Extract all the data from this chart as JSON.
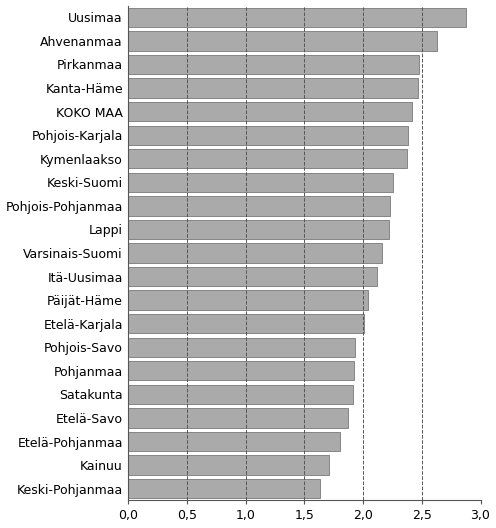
{
  "categories": [
    "Uusimaa",
    "Ahvenanmaa",
    "Pirkanmaa",
    "Kanta-Häme",
    "KOKO MAA",
    "Pohjois-Karjala",
    "Kymenlaakso",
    "Keski-Suomi",
    "Pohjois-Pohjanmaa",
    "Lappi",
    "Varsinais-Suomi",
    "Itä-Uusimaa",
    "Päijät-Häme",
    "Etelä-Karjala",
    "Pohjois-Savo",
    "Pohjanmaa",
    "Satakunta",
    "Etelä-Savo",
    "Etelä-Pohjanmaa",
    "Kainuu",
    "Keski-Pohjanmaa"
  ],
  "values": [
    2.88,
    2.63,
    2.48,
    2.47,
    2.42,
    2.38,
    2.37,
    2.25,
    2.23,
    2.22,
    2.16,
    2.12,
    2.04,
    2.01,
    1.93,
    1.92,
    1.91,
    1.87,
    1.8,
    1.71,
    1.63
  ],
  "bar_color": "#aaaaaa",
  "bar_edgecolor": "#666666",
  "xlim": [
    0,
    3.0
  ],
  "xticks": [
    0.0,
    0.5,
    1.0,
    1.5,
    2.0,
    2.5,
    3.0
  ],
  "xticklabels": [
    "0,0",
    "0,5",
    "1,0",
    "1,5",
    "2,0",
    "2,5",
    "3,0"
  ],
  "all_vlines": [
    0.5,
    1.0,
    1.5,
    2.0,
    2.5
  ],
  "vline_style": "--",
  "vline_color": "#555555",
  "background_color": "#ffffff",
  "tick_fontsize": 9,
  "label_fontsize": 9
}
